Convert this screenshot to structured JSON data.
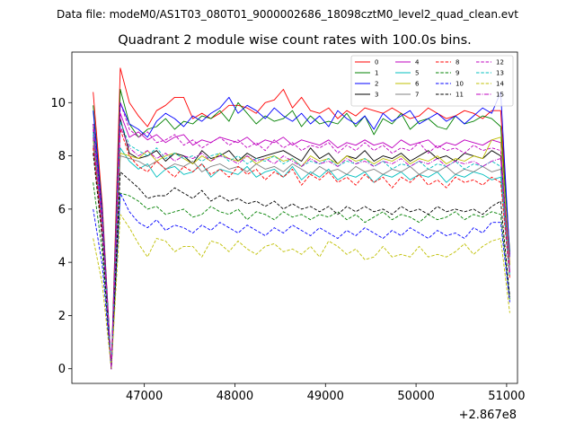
{
  "chart_data": {
    "type": "line",
    "suptitle": "Data file: modeM0/AS1T03_080T01_9000002686_18098cztM0_level2_quad_clean.evt",
    "title": "Quadrant 2 module wise count rates with 100.0s bins.",
    "xlabel": "",
    "ylabel": "",
    "x_offset_label": "+2.867e8",
    "xlim": [
      46200,
      51120
    ],
    "ylim": [
      -0.55,
      11.9
    ],
    "xticks": [
      47000,
      48000,
      49000,
      50000,
      51000
    ],
    "xtick_labels": [
      "47000",
      "48000",
      "49000",
      "50000",
      "51000"
    ],
    "yticks": [
      0,
      2,
      4,
      6,
      8,
      10
    ],
    "ytick_labels": [
      "0",
      "2",
      "4",
      "6",
      "8",
      "10"
    ],
    "grid": false,
    "legend_location": "top-right",
    "x": [
      46435,
      46535,
      46635,
      46735,
      46835,
      46935,
      47035,
      47135,
      47235,
      47335,
      47435,
      47535,
      47635,
      47735,
      47835,
      47935,
      48035,
      48135,
      48235,
      48335,
      48435,
      48535,
      48635,
      48735,
      48835,
      48935,
      49035,
      49135,
      49235,
      49335,
      49435,
      49535,
      49635,
      49735,
      49835,
      49935,
      50035,
      50135,
      50235,
      50335,
      50435,
      50535,
      50635,
      50735,
      50835,
      50935,
      51035
    ],
    "series": [
      {
        "name": "0",
        "color": "#ff0000",
        "dash": "solid",
        "values": [
          10.4,
          6.2,
          0.0,
          11.3,
          10.0,
          9.5,
          9.1,
          9.7,
          9.9,
          10.2,
          10.2,
          9.4,
          9.6,
          9.4,
          9.6,
          9.9,
          9.9,
          9.8,
          9.6,
          10.0,
          10.1,
          10.5,
          9.8,
          10.2,
          9.7,
          9.6,
          9.8,
          9.4,
          9.7,
          9.5,
          9.8,
          9.7,
          9.6,
          9.8,
          9.6,
          9.4,
          9.5,
          9.8,
          9.6,
          9.4,
          9.5,
          9.7,
          9.6,
          9.4,
          9.7,
          9.7,
          4.3
        ]
      },
      {
        "name": "1",
        "color": "#008000",
        "dash": "solid",
        "values": [
          9.9,
          6.0,
          0.0,
          10.5,
          9.2,
          8.7,
          9.0,
          9.1,
          9.4,
          9.0,
          9.3,
          9.2,
          9.5,
          9.4,
          9.7,
          9.3,
          10.0,
          9.6,
          9.2,
          9.5,
          9.3,
          9.4,
          9.7,
          9.1,
          9.5,
          9.2,
          9.3,
          9.2,
          9.6,
          9.1,
          9.5,
          8.8,
          9.4,
          9.2,
          9.6,
          9.0,
          9.3,
          9.4,
          9.1,
          9.0,
          9.5,
          9.2,
          9.3,
          9.5,
          9.4,
          9.1,
          4.4
        ]
      },
      {
        "name": "2",
        "color": "#0000ff",
        "dash": "solid",
        "values": [
          9.7,
          5.9,
          0.0,
          10.0,
          9.2,
          9.0,
          8.7,
          9.3,
          9.6,
          9.4,
          9.1,
          9.5,
          9.3,
          9.6,
          9.8,
          10.2,
          9.6,
          9.9,
          9.7,
          9.4,
          9.8,
          9.5,
          9.3,
          9.6,
          9.2,
          9.5,
          9.1,
          9.7,
          9.4,
          9.2,
          9.5,
          9.0,
          9.6,
          9.3,
          9.5,
          9.7,
          9.2,
          9.4,
          9.6,
          9.3,
          9.5,
          9.2,
          9.5,
          9.8,
          9.6,
          10.4,
          4.2
        ]
      },
      {
        "name": "3",
        "color": "#000000",
        "dash": "solid",
        "values": [
          9.2,
          5.7,
          0.0,
          9.4,
          8.1,
          7.9,
          8.0,
          8.2,
          7.8,
          8.1,
          8.0,
          7.7,
          8.2,
          7.9,
          8.0,
          8.2,
          7.8,
          8.1,
          7.9,
          8.0,
          8.1,
          8.2,
          8.0,
          7.8,
          8.3,
          7.9,
          8.1,
          7.7,
          8.0,
          7.9,
          8.2,
          7.8,
          8.0,
          7.9,
          8.1,
          7.8,
          8.0,
          8.2,
          7.9,
          8.0,
          7.8,
          8.1,
          8.0,
          7.9,
          8.2,
          8.0,
          3.9
        ]
      },
      {
        "name": "4",
        "color": "#bf00bf",
        "dash": "solid",
        "values": [
          9.0,
          5.6,
          0.0,
          9.6,
          8.7,
          8.9,
          8.6,
          8.8,
          8.5,
          8.7,
          8.8,
          8.4,
          8.6,
          8.5,
          8.7,
          8.6,
          8.5,
          8.7,
          8.4,
          8.6,
          8.5,
          8.7,
          8.4,
          8.6,
          8.5,
          8.4,
          8.6,
          8.3,
          8.5,
          8.4,
          8.6,
          8.4,
          8.5,
          8.3,
          8.6,
          8.4,
          8.5,
          8.6,
          8.3,
          8.5,
          8.4,
          8.6,
          8.5,
          8.4,
          8.6,
          8.5,
          4.0
        ]
      },
      {
        "name": "5",
        "color": "#00bfbf",
        "dash": "solid",
        "values": [
          8.8,
          5.3,
          0.0,
          8.3,
          7.8,
          7.5,
          7.7,
          7.2,
          7.5,
          7.6,
          7.3,
          7.4,
          7.7,
          7.2,
          7.5,
          7.4,
          7.3,
          7.6,
          7.2,
          7.4,
          7.5,
          7.2,
          7.6,
          7.1,
          7.4,
          7.2,
          7.5,
          7.1,
          7.3,
          7.2,
          7.4,
          7.0,
          7.3,
          7.2,
          7.4,
          7.1,
          7.3,
          7.2,
          7.4,
          7.0,
          7.3,
          7.2,
          7.4,
          7.3,
          7.1,
          7.2,
          3.5
        ]
      },
      {
        "name": "6",
        "color": "#bfbf00",
        "dash": "solid",
        "values": [
          8.6,
          5.4,
          0.0,
          8.1,
          8.0,
          7.9,
          8.2,
          7.8,
          8.0,
          8.1,
          7.9,
          7.7,
          8.0,
          7.8,
          8.1,
          7.9,
          7.8,
          8.0,
          7.7,
          7.9,
          8.0,
          7.8,
          7.9,
          7.6,
          8.0,
          7.8,
          7.9,
          7.7,
          8.0,
          7.8,
          7.9,
          7.7,
          7.9,
          7.8,
          8.0,
          7.7,
          7.9,
          7.8,
          8.0,
          7.7,
          7.9,
          7.8,
          8.0,
          7.9,
          8.6,
          8.7,
          3.9
        ]
      },
      {
        "name": "7",
        "color": "#808080",
        "dash": "solid",
        "values": [
          8.4,
          5.2,
          0.0,
          8.0,
          7.9,
          7.8,
          7.6,
          7.8,
          7.5,
          7.7,
          7.6,
          7.8,
          7.4,
          7.6,
          7.7,
          7.5,
          7.6,
          7.4,
          7.7,
          7.5,
          7.6,
          7.4,
          7.7,
          7.5,
          7.3,
          7.6,
          7.4,
          7.5,
          7.3,
          7.6,
          7.4,
          7.5,
          7.3,
          7.5,
          7.4,
          7.6,
          7.3,
          7.5,
          7.4,
          7.6,
          7.3,
          7.5,
          7.4,
          7.6,
          7.4,
          7.5,
          3.7
        ]
      },
      {
        "name": "8",
        "color": "#ff0000",
        "dash": "dashed",
        "values": [
          8.3,
          5.1,
          0.0,
          9.0,
          8.0,
          7.6,
          7.4,
          7.8,
          7.5,
          7.2,
          7.6,
          7.4,
          7.7,
          7.3,
          7.5,
          7.2,
          7.6,
          7.3,
          7.5,
          7.1,
          7.4,
          7.2,
          7.5,
          6.9,
          7.3,
          7.1,
          7.4,
          7.0,
          7.2,
          6.9,
          7.3,
          7.0,
          7.2,
          6.8,
          7.2,
          7.0,
          7.3,
          6.9,
          7.1,
          6.8,
          7.2,
          7.0,
          7.1,
          6.9,
          7.2,
          7.0,
          3.4
        ]
      },
      {
        "name": "9",
        "color": "#008000",
        "dash": "dashed",
        "values": [
          7.0,
          4.4,
          0.0,
          6.6,
          6.5,
          6.3,
          6.0,
          6.1,
          5.8,
          5.9,
          6.0,
          5.7,
          5.8,
          6.1,
          5.9,
          5.8,
          6.0,
          5.6,
          5.9,
          5.8,
          5.6,
          5.9,
          5.7,
          5.8,
          5.6,
          5.8,
          5.7,
          5.9,
          5.6,
          5.8,
          5.5,
          5.7,
          5.9,
          5.6,
          5.8,
          5.7,
          5.5,
          5.8,
          5.6,
          5.7,
          5.9,
          5.6,
          5.8,
          5.7,
          5.9,
          5.8,
          2.6
        ]
      },
      {
        "name": "10",
        "color": "#0000ff",
        "dash": "dashed",
        "values": [
          6.0,
          3.9,
          0.0,
          6.6,
          5.9,
          5.5,
          5.3,
          5.6,
          5.2,
          5.4,
          5.3,
          5.1,
          5.4,
          5.2,
          5.5,
          5.3,
          5.1,
          5.4,
          5.2,
          5.0,
          5.3,
          5.1,
          5.4,
          5.2,
          5.0,
          5.3,
          5.1,
          4.9,
          5.2,
          5.0,
          5.3,
          5.1,
          4.9,
          5.2,
          5.0,
          5.3,
          5.1,
          4.9,
          5.2,
          5.0,
          5.1,
          4.9,
          5.3,
          5.1,
          5.5,
          5.5,
          2.5
        ]
      },
      {
        "name": "11",
        "color": "#000000",
        "dash": "dashed",
        "values": [
          8.1,
          4.9,
          0.0,
          7.4,
          7.1,
          6.8,
          6.4,
          6.5,
          6.5,
          6.8,
          6.6,
          6.4,
          6.7,
          6.3,
          6.5,
          6.3,
          6.4,
          6.2,
          6.3,
          6.1,
          6.3,
          6.0,
          6.2,
          6.0,
          6.1,
          5.9,
          6.1,
          5.8,
          6.1,
          5.9,
          6.1,
          5.9,
          6.0,
          5.8,
          6.1,
          5.9,
          6.0,
          5.8,
          6.1,
          5.9,
          6.0,
          5.9,
          6.0,
          5.8,
          6.1,
          6.3,
          2.7
        ]
      },
      {
        "name": "12",
        "color": "#bf00bf",
        "dash": "dashed",
        "values": [
          9.2,
          5.8,
          0.0,
          10.0,
          9.0,
          8.7,
          8.9,
          8.5,
          8.6,
          8.8,
          8.4,
          8.6,
          8.3,
          8.5,
          8.7,
          8.4,
          8.6,
          8.3,
          8.5,
          8.2,
          8.6,
          8.3,
          8.5,
          8.2,
          8.4,
          8.3,
          8.5,
          8.1,
          8.4,
          8.2,
          8.5,
          8.2,
          8.4,
          8.1,
          8.3,
          8.2,
          8.5,
          8.1,
          8.4,
          8.2,
          8.3,
          8.1,
          8.4,
          8.2,
          8.3,
          8.2,
          3.6
        ]
      },
      {
        "name": "13",
        "color": "#00bfbf",
        "dash": "dashed",
        "values": [
          8.9,
          5.5,
          0.0,
          9.3,
          8.4,
          8.2,
          8.0,
          8.3,
          7.9,
          8.1,
          7.9,
          8.0,
          7.8,
          8.0,
          8.1,
          7.8,
          8.0,
          7.7,
          7.9,
          7.8,
          8.0,
          7.7,
          7.9,
          7.6,
          7.8,
          7.7,
          7.9,
          7.6,
          7.8,
          7.7,
          7.9,
          7.6,
          7.8,
          7.5,
          7.7,
          7.6,
          7.8,
          7.5,
          7.7,
          7.6,
          7.8,
          7.5,
          7.7,
          7.6,
          7.8,
          7.6,
          3.5
        ]
      },
      {
        "name": "14",
        "color": "#bfbf00",
        "dash": "dashed",
        "values": [
          4.9,
          3.2,
          0.0,
          5.8,
          5.3,
          4.7,
          4.2,
          4.9,
          4.8,
          4.4,
          4.6,
          4.6,
          4.2,
          4.8,
          4.7,
          4.4,
          4.8,
          4.5,
          4.3,
          4.6,
          4.7,
          4.4,
          4.5,
          4.3,
          4.6,
          4.2,
          4.8,
          4.6,
          4.3,
          4.5,
          4.1,
          4.2,
          4.6,
          4.2,
          4.3,
          4.2,
          4.6,
          4.2,
          4.3,
          4.2,
          4.4,
          4.7,
          4.3,
          4.6,
          4.8,
          4.9,
          2.1
        ]
      },
      {
        "name": "15",
        "color": "#bf00bf",
        "dash": "dashdot",
        "values": [
          8.7,
          5.4,
          0.0,
          9.1,
          8.3,
          8.0,
          8.2,
          7.9,
          8.1,
          7.8,
          8.0,
          7.9,
          8.1,
          7.8,
          8.0,
          7.9,
          7.7,
          8.0,
          7.8,
          7.9,
          7.7,
          8.0,
          7.8,
          7.6,
          7.9,
          7.7,
          7.8,
          7.6,
          7.9,
          7.7,
          7.8,
          7.6,
          7.8,
          7.7,
          7.9,
          7.6,
          7.8,
          7.7,
          7.9,
          7.6,
          7.8,
          7.7,
          7.8,
          7.6,
          7.8,
          7.9,
          3.6
        ]
      }
    ]
  }
}
